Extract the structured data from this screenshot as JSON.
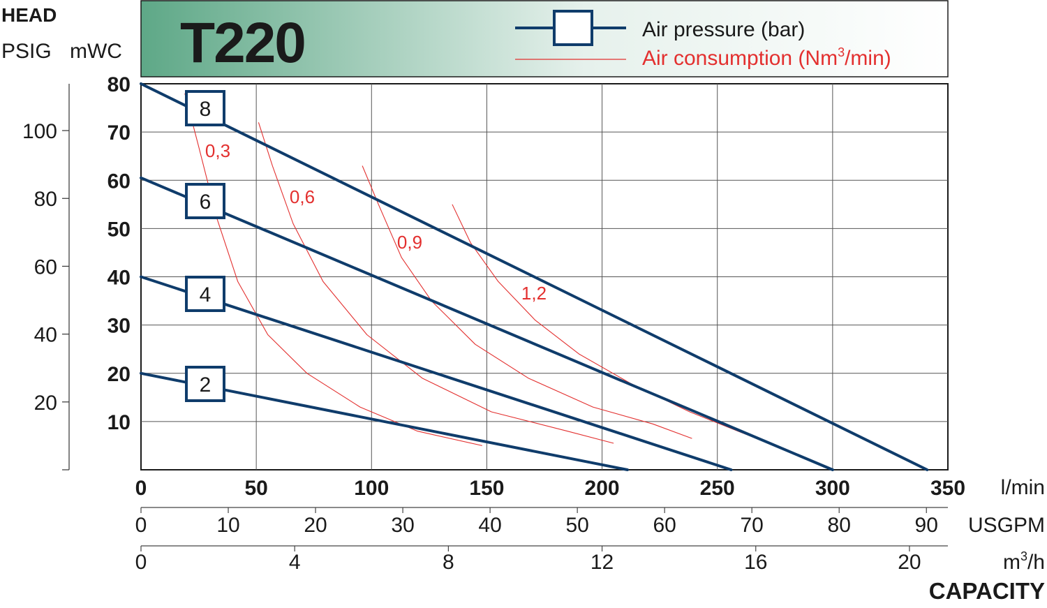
{
  "title": "T220",
  "head_label": "HEAD",
  "left_units": [
    "PSIG",
    "mWC"
  ],
  "legend": {
    "pressure_label": "Air pressure (bar)",
    "consumption_label_prefix": "Air consumption (Nm",
    "consumption_label_sup": "3",
    "consumption_label_suffix": "/min)"
  },
  "capacity_label": "CAPACITY",
  "colors": {
    "pressure_line": "#0f3c6b",
    "consumption_line": "#e3302f",
    "header_gradient_start": "#5ea887",
    "header_gradient_end": "#ffffff"
  },
  "chart_data": {
    "type": "line",
    "x_axes": [
      {
        "unit": "l/min",
        "unit_sup": "",
        "unit_after": "",
        "min": 0,
        "max": 350,
        "ticks": [
          "0",
          "50",
          "100",
          "150",
          "200",
          "250",
          "300",
          "350"
        ],
        "bold": true
      },
      {
        "unit": "USGPM",
        "unit_sup": "",
        "unit_after": "",
        "min": 0,
        "max": 92.46,
        "ticks": [
          "0",
          "10",
          "20",
          "30",
          "40",
          "50",
          "60",
          "70",
          "80",
          "90"
        ],
        "bold": false
      },
      {
        "unit": "m",
        "unit_sup": "3",
        "unit_after": "/h",
        "min": 0,
        "max": 21,
        "ticks": [
          "0",
          "4",
          "8",
          "12",
          "16",
          "20"
        ],
        "bold": false
      }
    ],
    "y_axes": [
      {
        "unit": "mWC",
        "min": 0,
        "max": 80,
        "ticks": [
          "10",
          "20",
          "30",
          "40",
          "50",
          "60",
          "70",
          "80"
        ],
        "bold": true
      },
      {
        "unit": "PSIG",
        "min": 0,
        "max": 113.8,
        "ticks": [
          "20",
          "40",
          "60",
          "80",
          "100"
        ],
        "bold": false
      }
    ],
    "grid": true,
    "pressure_series": [
      {
        "label": "8",
        "points": [
          [
            0,
            80
          ],
          [
            341,
            0
          ]
        ]
      },
      {
        "label": "6",
        "points": [
          [
            0,
            60.5
          ],
          [
            300,
            0
          ]
        ]
      },
      {
        "label": "4",
        "points": [
          [
            0,
            40
          ],
          [
            256,
            0
          ]
        ]
      },
      {
        "label": "2",
        "points": [
          [
            0,
            20
          ],
          [
            211,
            0
          ]
        ]
      }
    ],
    "consumption_series": [
      {
        "label": "0,3",
        "points": [
          [
            19,
            78
          ],
          [
            25,
            67
          ],
          [
            33,
            52
          ],
          [
            42,
            39
          ],
          [
            55,
            28
          ],
          [
            72,
            20
          ],
          [
            95,
            13
          ],
          [
            120,
            8
          ],
          [
            148,
            5
          ]
        ]
      },
      {
        "label": "0,6",
        "points": [
          [
            51,
            72
          ],
          [
            57,
            63
          ],
          [
            66,
            51
          ],
          [
            79,
            39
          ],
          [
            98,
            28
          ],
          [
            122,
            19
          ],
          [
            152,
            12
          ],
          [
            185,
            8
          ],
          [
            205,
            5.5
          ]
        ]
      },
      {
        "label": "0,9",
        "points": [
          [
            96,
            63
          ],
          [
            103,
            55
          ],
          [
            113,
            44
          ],
          [
            126,
            35
          ],
          [
            145,
            26
          ],
          [
            168,
            19
          ],
          [
            196,
            13
          ],
          [
            222,
            9.5
          ],
          [
            239,
            6.5
          ]
        ]
      },
      {
        "label": "1,2",
        "points": [
          [
            135,
            55
          ],
          [
            143,
            47
          ],
          [
            155,
            39
          ],
          [
            171,
            31
          ],
          [
            190,
            24
          ],
          [
            212,
            18
          ],
          [
            238,
            12
          ],
          [
            259,
            8
          ],
          [
            275,
            5
          ]
        ]
      }
    ]
  }
}
